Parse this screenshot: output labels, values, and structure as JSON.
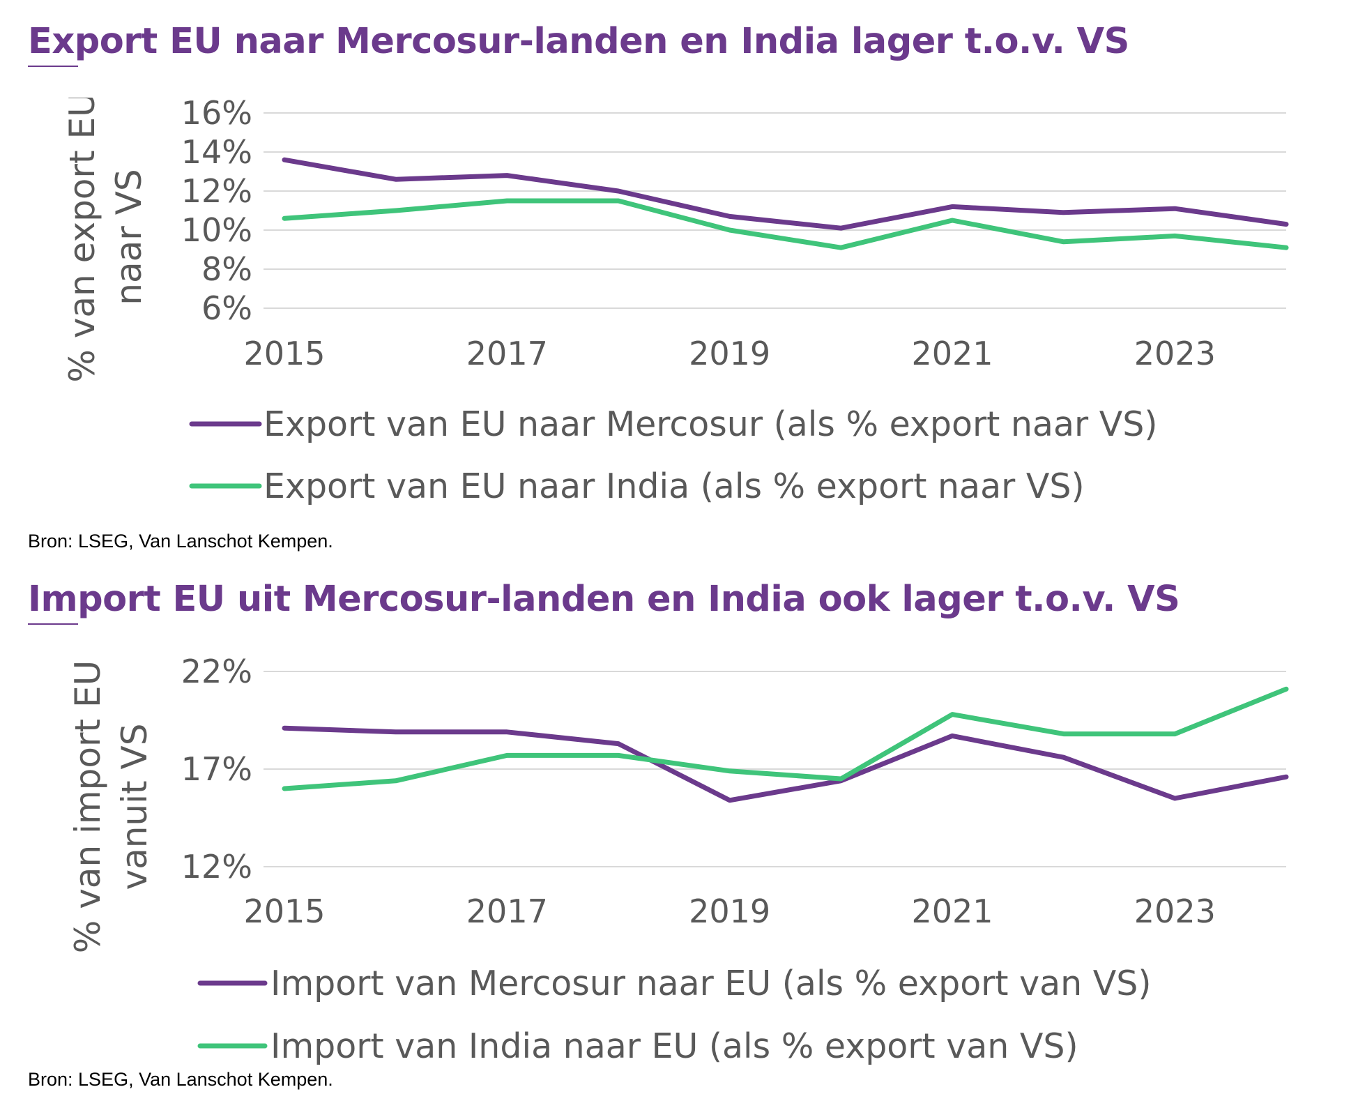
{
  "colors": {
    "title": "#6b3a8c",
    "mercosur": "#6b3a8c",
    "india": "#3fc47a",
    "grid": "#d9d9d9",
    "text": "#595959"
  },
  "source": "Bron: LSEG, Van Lanschot Kempen.",
  "chart_data": [
    {
      "type": "line",
      "title": "Export EU naar Mercosur-landen en India lager t.o.v. VS",
      "ylabel_lines": [
        "% van export EU",
        "naar VS"
      ],
      "ylim": [
        6,
        16
      ],
      "yticks": [
        6,
        8,
        10,
        12,
        14,
        16
      ],
      "ytick_labels": [
        "6%",
        "8%",
        "10%",
        "12%",
        "14%",
        "16%"
      ],
      "xlim": [
        2015,
        2024
      ],
      "xticks": [
        "2015",
        "2017",
        "2019",
        "2021",
        "2023"
      ],
      "x": [
        2015,
        2016,
        2017,
        2018,
        2019,
        2020,
        2021,
        2022,
        2023,
        2024
      ],
      "series": [
        {
          "name": "Export van EU naar Mercosur (als % export naar VS)",
          "color": "#6b3a8c",
          "values": [
            13.6,
            12.6,
            12.8,
            12.0,
            10.7,
            10.1,
            11.2,
            10.9,
            11.1,
            10.3
          ]
        },
        {
          "name": "Export van EU naar India (als % export naar VS)",
          "color": "#3fc47a",
          "values": [
            10.6,
            11.0,
            11.5,
            11.5,
            10.0,
            9.1,
            10.5,
            9.4,
            9.7,
            9.1
          ]
        }
      ],
      "grid": true,
      "legend": "bottom"
    },
    {
      "type": "line",
      "title": "Import EU uit Mercosur-landen en India ook lager t.o.v. VS",
      "ylabel_lines": [
        "% van import EU",
        "vanuit VS"
      ],
      "ylim": [
        12,
        22
      ],
      "yticks": [
        12,
        17,
        22
      ],
      "ytick_labels": [
        "12%",
        "17%",
        "22%"
      ],
      "xlim": [
        2015,
        2024
      ],
      "xticks": [
        "2015",
        "2017",
        "2019",
        "2021",
        "2023"
      ],
      "x": [
        2015,
        2016,
        2017,
        2018,
        2019,
        2020,
        2021,
        2022,
        2023,
        2024
      ],
      "series": [
        {
          "name": "Import van Mercosur naar EU (als % export van VS)",
          "color": "#6b3a8c",
          "values": [
            19.1,
            18.9,
            18.9,
            18.3,
            15.4,
            16.4,
            18.7,
            17.6,
            15.5,
            16.6
          ]
        },
        {
          "name": "Import van India naar EU (als % export van VS)",
          "color": "#3fc47a",
          "values": [
            16.0,
            16.4,
            17.7,
            17.7,
            16.9,
            16.5,
            19.8,
            18.8,
            18.8,
            21.1
          ]
        }
      ],
      "grid": true,
      "legend": "bottom"
    }
  ]
}
